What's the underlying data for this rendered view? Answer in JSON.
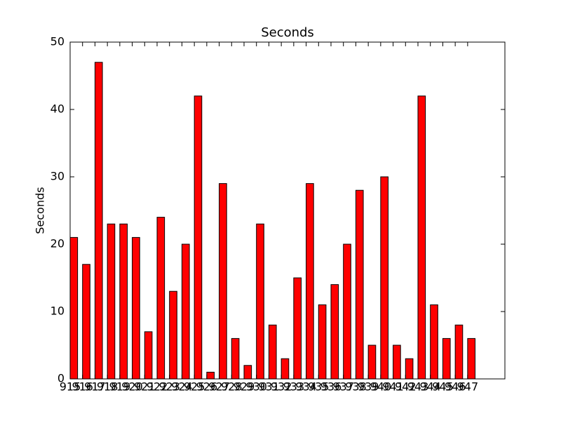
{
  "chart_data": {
    "type": "bar",
    "title": "Seconds",
    "y_label": "Seconds",
    "categories": [
      "915",
      "916",
      "917",
      "918",
      "919",
      "920",
      "921",
      "922",
      "923",
      "924",
      "925",
      "926",
      "927",
      "928",
      "929",
      "930",
      "931",
      "932",
      "933",
      "934",
      "935",
      "936",
      "937",
      "938",
      "939",
      "940",
      "941",
      "942",
      "943",
      "944",
      "945",
      "946",
      "947"
    ],
    "values": [
      21,
      17,
      47,
      23,
      23,
      21,
      7,
      24,
      13,
      20,
      42,
      1,
      29,
      6,
      2,
      23,
      8,
      3,
      15,
      29,
      11,
      14,
      20,
      28,
      5,
      30,
      5,
      3,
      42,
      11,
      6,
      8,
      6
    ],
    "color": "#ff0000",
    "ylim": [
      0,
      50
    ],
    "yticks": [
      0,
      10,
      20,
      30,
      40,
      50
    ],
    "grid": false
  }
}
